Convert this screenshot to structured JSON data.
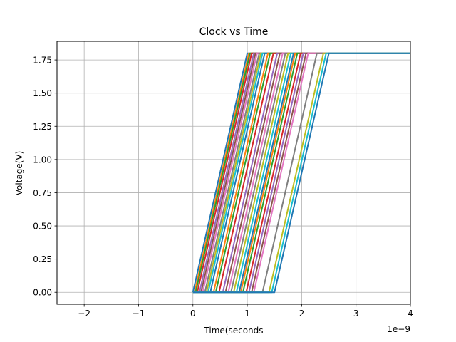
{
  "chart_data": {
    "type": "line",
    "title": "Clock vs Time",
    "xlabel": "Time(seconds",
    "ylabel": "Voltage(V)",
    "x_offset_label": "1e−9",
    "xlim": [
      -2.5e-09,
      4e-09
    ],
    "ylim": [
      -0.09,
      1.89
    ],
    "xticks": [
      -2e-09,
      -1e-09,
      0,
      1e-09,
      2e-09,
      3e-09,
      4e-09
    ],
    "xtick_labels": [
      "−2",
      "−1",
      "0",
      "1",
      "2",
      "3",
      "4"
    ],
    "yticks": [
      0.0,
      0.25,
      0.5,
      0.75,
      1.0,
      1.25,
      1.5,
      1.75
    ],
    "ytick_labels": [
      "0.00",
      "0.25",
      "0.50",
      "0.75",
      "1.00",
      "1.25",
      "1.50",
      "1.75"
    ],
    "grid": true,
    "series_colors": [
      "#1f77b4",
      "#ff7f0e",
      "#2ca02c",
      "#d62728",
      "#9467bd",
      "#8c564b",
      "#e377c2",
      "#7f7f7f",
      "#bcbd22",
      "#17becf"
    ],
    "series": [
      {
        "x": [
          0.0,
          0.0,
          1e-09,
          4e-09
        ],
        "y": [
          0,
          0,
          1.8,
          1.8
        ]
      },
      {
        "x": [
          0.0,
          3e-11,
          1.03e-09,
          4e-09
        ],
        "y": [
          0,
          0,
          1.8,
          1.8
        ]
      },
      {
        "x": [
          0.0,
          5e-11,
          1.05e-09,
          4e-09
        ],
        "y": [
          0,
          0,
          1.8,
          1.8
        ]
      },
      {
        "x": [
          0.0,
          8e-11,
          1.08e-09,
          4e-09
        ],
        "y": [
          0,
          0,
          1.8,
          1.8
        ]
      },
      {
        "x": [
          0.0,
          1.2e-10,
          1.12e-09,
          4e-09
        ],
        "y": [
          0,
          0,
          1.8,
          1.8
        ]
      },
      {
        "x": [
          0.0,
          1.5e-10,
          1.15e-09,
          4e-09
        ],
        "y": [
          0,
          0,
          1.8,
          1.8
        ]
      },
      {
        "x": [
          0.0,
          1.8e-10,
          1.18e-09,
          4e-09
        ],
        "y": [
          0,
          0,
          1.8,
          1.8
        ]
      },
      {
        "x": [
          0.0,
          2.2e-10,
          1.22e-09,
          4e-09
        ],
        "y": [
          0,
          0,
          1.8,
          1.8
        ]
      },
      {
        "x": [
          0.0,
          2.5e-10,
          1.25e-09,
          4e-09
        ],
        "y": [
          0,
          0,
          1.8,
          1.8
        ]
      },
      {
        "x": [
          0.0,
          2.8e-10,
          1.28e-09,
          4e-09
        ],
        "y": [
          0,
          0,
          1.8,
          1.8
        ]
      },
      {
        "x": [
          0.0,
          3.2e-10,
          1.32e-09,
          4e-09
        ],
        "y": [
          0,
          0,
          1.8,
          1.8
        ]
      },
      {
        "x": [
          0.0,
          3.8e-10,
          1.38e-09,
          4e-09
        ],
        "y": [
          0,
          0,
          1.8,
          1.8
        ]
      },
      {
        "x": [
          0.0,
          4.2e-10,
          1.42e-09,
          4e-09
        ],
        "y": [
          0,
          0,
          1.8,
          1.8
        ]
      },
      {
        "x": [
          0.0,
          4.8e-10,
          1.48e-09,
          4e-09
        ],
        "y": [
          0,
          0,
          1.8,
          1.8
        ]
      },
      {
        "x": [
          0.0,
          5.5e-10,
          1.55e-09,
          4e-09
        ],
        "y": [
          0,
          0,
          1.8,
          1.8
        ]
      },
      {
        "x": [
          0.0,
          6e-10,
          1.6e-09,
          4e-09
        ],
        "y": [
          0,
          0,
          1.8,
          1.8
        ]
      },
      {
        "x": [
          0.0,
          6.5e-10,
          1.65e-09,
          4e-09
        ],
        "y": [
          0,
          0,
          1.8,
          1.8
        ]
      },
      {
        "x": [
          0.0,
          7e-10,
          1.7e-09,
          4e-09
        ],
        "y": [
          0,
          0,
          1.8,
          1.8
        ]
      },
      {
        "x": [
          0.0,
          7.5e-10,
          1.75e-09,
          4e-09
        ],
        "y": [
          0,
          0,
          1.8,
          1.8
        ]
      },
      {
        "x": [
          0.0,
          8e-10,
          1.8e-09,
          4e-09
        ],
        "y": [
          0,
          0,
          1.8,
          1.8
        ]
      },
      {
        "x": [
          0.0,
          8.5e-10,
          1.85e-09,
          4e-09
        ],
        "y": [
          0,
          0,
          1.8,
          1.8
        ]
      },
      {
        "x": [
          0.0,
          8.8e-10,
          1.88e-09,
          4e-09
        ],
        "y": [
          0,
          0,
          1.8,
          1.8
        ]
      },
      {
        "x": [
          0.0,
          9.2e-10,
          1.92e-09,
          4e-09
        ],
        "y": [
          0,
          0,
          1.8,
          1.8
        ]
      },
      {
        "x": [
          0.0,
          9.8e-10,
          1.98e-09,
          4e-09
        ],
        "y": [
          0,
          0,
          1.8,
          1.8
        ]
      },
      {
        "x": [
          0.0,
          1.03e-09,
          2.03e-09,
          4e-09
        ],
        "y": [
          0,
          0,
          1.8,
          1.8
        ]
      },
      {
        "x": [
          0.0,
          1.08e-09,
          2.08e-09,
          4e-09
        ],
        "y": [
          0,
          0,
          1.8,
          1.8
        ]
      },
      {
        "x": [
          0.0,
          1.12e-09,
          2.12e-09,
          4e-09
        ],
        "y": [
          0,
          0,
          1.8,
          1.8
        ]
      },
      {
        "x": [
          0.0,
          1.28e-09,
          2.28e-09,
          4e-09
        ],
        "y": [
          0,
          0,
          1.8,
          1.8
        ]
      },
      {
        "x": [
          0.0,
          1.4e-09,
          2.4e-09,
          4e-09
        ],
        "y": [
          0,
          0,
          1.8,
          1.8
        ]
      },
      {
        "x": [
          0.0,
          1.45e-09,
          2.45e-09,
          4e-09
        ],
        "y": [
          0,
          0,
          1.8,
          1.8
        ]
      },
      {
        "x": [
          0.0,
          1.5e-09,
          2.5e-09,
          4e-09
        ],
        "y": [
          0,
          0,
          1.8,
          1.8
        ]
      }
    ]
  }
}
